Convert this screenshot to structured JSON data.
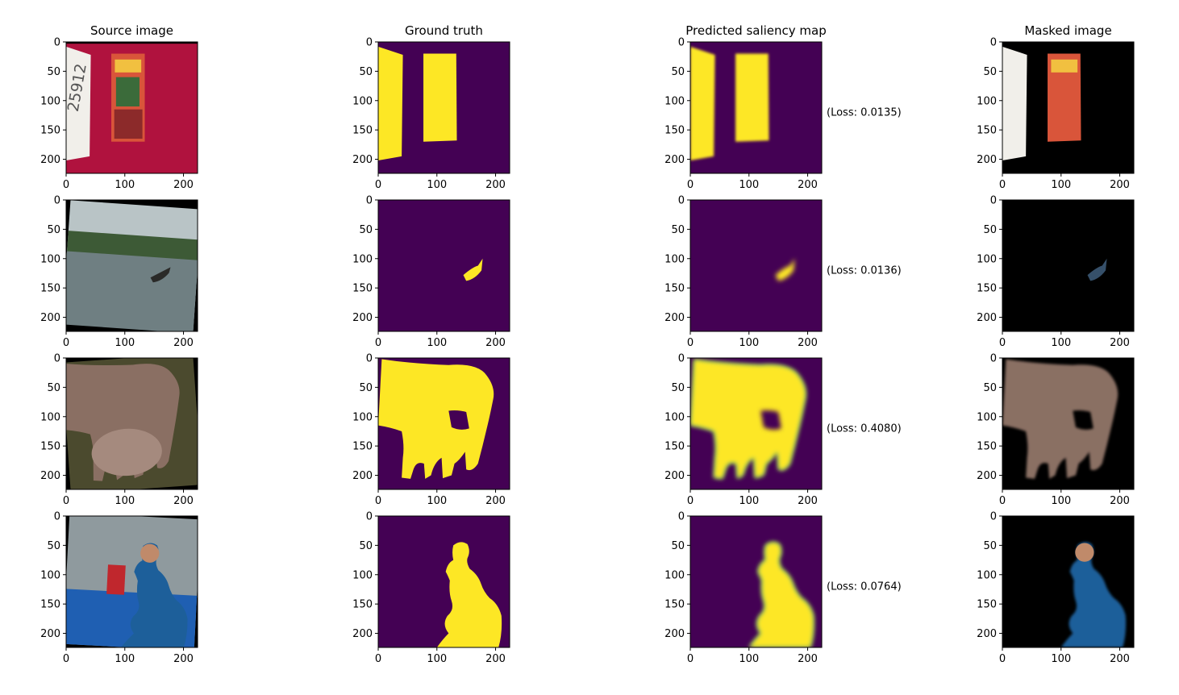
{
  "figure": {
    "columns": [
      {
        "title": "Source image",
        "kind": "source"
      },
      {
        "title": "Ground truth",
        "kind": "ground_truth"
      },
      {
        "title": "Predicted saliency map",
        "kind": "predicted"
      },
      {
        "title": "Masked image",
        "kind": "masked"
      }
    ],
    "rows": [
      {
        "subject": "comic-strip-and-note",
        "loss_label": "(Loss: 0.0135)"
      },
      {
        "subject": "boat-on-river",
        "loss_label": "(Loss: 0.0136)"
      },
      {
        "subject": "elephants",
        "loss_label": "(Loss: 0.4080)"
      },
      {
        "subject": "table-tennis-player",
        "loss_label": "(Loss: 0.0764)"
      }
    ],
    "colors": {
      "viridis_low": "#440154",
      "viridis_high": "#fde725",
      "viridis_mid": "#21918c",
      "masked_background": "#000000"
    }
  },
  "chart_data": {
    "type": "heatmap",
    "layout_grid": {
      "rows": 4,
      "cols": 4
    },
    "image_size": [
      224,
      224
    ],
    "xlim": [
      0,
      224
    ],
    "ylim": [
      224,
      0
    ],
    "x_ticks": [
      0,
      100,
      200
    ],
    "y_ticks": [
      0,
      50,
      100,
      150,
      200
    ],
    "losses": [
      0.0135,
      0.0136,
      0.408,
      0.0764
    ]
  }
}
